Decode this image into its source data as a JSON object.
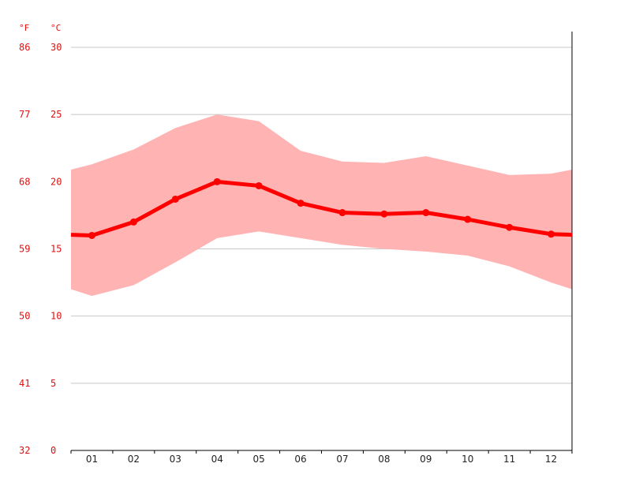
{
  "chart_data": {
    "type": "line",
    "title": "",
    "xlabel": "",
    "ylabel": "",
    "units": {
      "fahrenheit": "°F",
      "celsius": "°C"
    },
    "x_ticks": [
      "01",
      "02",
      "03",
      "04",
      "05",
      "06",
      "07",
      "08",
      "09",
      "10",
      "11",
      "12"
    ],
    "y_ticks_celsius": [
      "30",
      "25",
      "20",
      "15",
      "10",
      "5",
      "0"
    ],
    "y_ticks_fahrenheit": [
      "86",
      "77",
      "68",
      "59",
      "50",
      "41",
      "32"
    ],
    "ylim": [
      0,
      30
    ],
    "grid": true,
    "series": [
      {
        "type": "band",
        "color": "#ffb3b3",
        "upper": [
          21.3,
          22.4,
          24.0,
          25.0,
          24.5,
          22.3,
          21.5,
          21.4,
          21.9,
          21.2,
          20.5,
          20.6
        ],
        "lower": [
          11.5,
          12.3,
          14.0,
          15.8,
          16.3,
          15.8,
          15.3,
          15.0,
          14.8,
          14.5,
          13.7,
          12.5
        ],
        "edge_upper": [
          20.9,
          20.9
        ],
        "edge_lower": [
          12.0,
          12.0
        ]
      },
      {
        "type": "line",
        "color": "#ff0000",
        "values": [
          16.0,
          17.0,
          18.7,
          20.0,
          19.7,
          18.4,
          17.7,
          17.6,
          17.7,
          17.2,
          16.6,
          16.1
        ],
        "edge_values": [
          16.05,
          16.05
        ]
      }
    ]
  }
}
